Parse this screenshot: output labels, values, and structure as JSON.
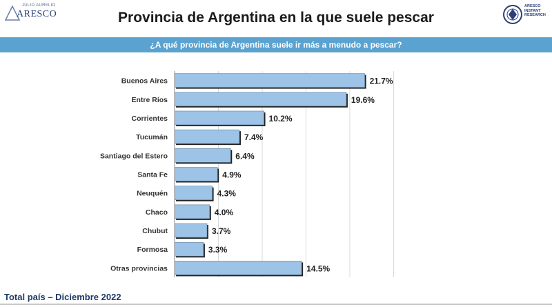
{
  "title": "Provincia de Argentina en la que suele pescar",
  "question": "¿A qué provincia de Argentina suele ir más a menudo a pescar?",
  "footer": "Total país – Diciembre 2022",
  "logo_left": {
    "small": "JULIO AURELIO",
    "big": "ARESCO"
  },
  "logo_right": {
    "lines": [
      "ARESCO",
      "INSTANT",
      "RESEARCH"
    ]
  },
  "colors": {
    "bar": "#9dc3e6",
    "banner": "#5aa2cf",
    "grid": "#d9d9d9"
  },
  "chart_data": {
    "type": "bar",
    "orientation": "horizontal",
    "categories": [
      "Buenos Aires",
      "Entre Ríos",
      "Corrientes",
      "Tucumán",
      "Santiago del Estero",
      "Santa Fe",
      "Neuquén",
      "Chaco",
      "Chubut",
      "Formosa",
      "Otras provincias"
    ],
    "values": [
      21.7,
      19.6,
      10.2,
      7.4,
      6.4,
      4.9,
      4.3,
      4.0,
      3.7,
      3.3,
      14.5
    ],
    "labels": [
      "21.7%",
      "19.6%",
      "10.2%",
      "7.4%",
      "6.4%",
      "4.9%",
      "4.3%",
      "4.0%",
      "3.7%",
      "3.3%",
      "14.5%"
    ],
    "xlim": [
      0,
      25
    ],
    "grid": true
  }
}
